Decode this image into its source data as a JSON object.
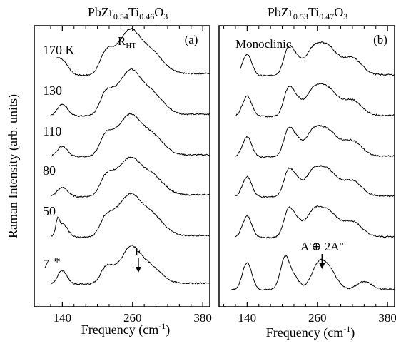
{
  "chart_data": [
    {
      "type": "line",
      "panel_label": "(a)",
      "composition": {
        "base": "PbZr",
        "zr": "0.54",
        "ti_sym": "Ti",
        "ti": "0.46",
        "o": "O",
        "o_sub": "3"
      },
      "phase": {
        "main": "R",
        "sub": "HT"
      },
      "xlabel": {
        "text": "Frequency (cm",
        "sup": "-1",
        "close": ")"
      },
      "ylabel": "Raman Intensity (arb. units)",
      "xlim": [
        92,
        392
      ],
      "xticks": [
        140,
        260,
        380
      ],
      "y_axis_ticks": false,
      "annotation": {
        "text": "E",
        "x": 270
      },
      "asterisk": {
        "text": "*",
        "x": 133
      },
      "series": [
        {
          "name": "170 K",
          "offset": 5,
          "peaks": [
            [
              130,
              0.3,
              5
            ],
            [
              140,
              0.55,
              10
            ],
            [
              213,
              0.65,
              10
            ],
            [
              228,
              0.45,
              12
            ],
            [
              244,
              0.52,
              13
            ],
            [
              258,
              0.55,
              12
            ],
            [
              272,
              1.0,
              22
            ],
            [
              302,
              0.35,
              18
            ]
          ],
          "base": [
            0.3,
            0.1
          ]
        },
        {
          "name": "130",
          "offset": 4,
          "peaks": [
            [
              140,
              0.45,
              9
            ],
            [
              213,
              0.65,
              10
            ],
            [
              228,
              0.45,
              12
            ],
            [
              244,
              0.52,
              13
            ],
            [
              258,
              0.55,
              12
            ],
            [
              272,
              1.0,
              22
            ],
            [
              302,
              0.35,
              18
            ]
          ],
          "base": [
            0.3,
            0.1
          ]
        },
        {
          "name": "110",
          "offset": 3,
          "peaks": [
            [
              140,
              0.4,
              9
            ],
            [
              213,
              0.6,
              10
            ],
            [
              228,
              0.45,
              12
            ],
            [
              244,
              0.5,
              13
            ],
            [
              258,
              0.5,
              12
            ],
            [
              272,
              0.9,
              22
            ],
            [
              302,
              0.35,
              18
            ]
          ],
          "base": [
            0.3,
            0.1
          ]
        },
        {
          "name": "80",
          "offset": 2,
          "peaks": [
            [
              140,
              0.35,
              9
            ],
            [
              213,
              0.55,
              10
            ],
            [
              228,
              0.45,
              12
            ],
            [
              244,
              0.45,
              13
            ],
            [
              258,
              0.45,
              12
            ],
            [
              272,
              0.85,
              22
            ],
            [
              302,
              0.35,
              18
            ]
          ],
          "base": [
            0.3,
            0.1
          ]
        },
        {
          "name": "50",
          "offset": 1,
          "peaks": [
            [
              132,
              0.4,
              3
            ],
            [
              140,
              0.5,
              9
            ],
            [
              213,
              0.55,
              10
            ],
            [
              228,
              0.45,
              12
            ],
            [
              244,
              0.5,
              13
            ],
            [
              258,
              0.5,
              12
            ],
            [
              272,
              0.95,
              22
            ],
            [
              302,
              0.35,
              18
            ]
          ],
          "base": [
            0.3,
            0.1
          ]
        },
        {
          "name": "7",
          "offset": 0,
          "peaks": [
            [
              140,
              0.5,
              8
            ],
            [
              213,
              0.5,
              9
            ],
            [
              228,
              0.4,
              10
            ],
            [
              246,
              0.45,
              11
            ],
            [
              258,
              0.45,
              11
            ],
            [
              270,
              0.85,
              18
            ],
            [
              300,
              0.35,
              16
            ]
          ],
          "base": [
            0.3,
            0.05
          ]
        }
      ]
    },
    {
      "type": "line",
      "panel_label": "(b)",
      "composition": {
        "base": "PbZr",
        "zr": "0.53",
        "ti_sym": "Ti",
        "ti": "0.47",
        "o": "O",
        "o_sub": "3"
      },
      "phase": {
        "main": "Monoclinic",
        "sub": ""
      },
      "xlabel": {
        "text": "Frequency (cm",
        "sup": "-1",
        "close": ")"
      },
      "xlim": [
        92,
        392
      ],
      "xticks": [
        140,
        260,
        380
      ],
      "y_axis_ticks": false,
      "annotation": {
        "text": "A'⊕ 2A''",
        "x": 268
      },
      "series": [
        {
          "offset": 5,
          "peaks": [
            [
              140,
              0.8,
              8
            ],
            [
              210,
              0.9,
              8
            ],
            [
              224,
              0.55,
              9
            ],
            [
              250,
              0.6,
              12
            ],
            [
              275,
              1.1,
              18
            ],
            [
              320,
              0.6,
              16
            ]
          ],
          "base": [
            0.3,
            0.05
          ]
        },
        {
          "offset": 4,
          "peaks": [
            [
              140,
              0.75,
              8
            ],
            [
              210,
              0.9,
              8
            ],
            [
              224,
              0.55,
              9
            ],
            [
              250,
              0.6,
              12
            ],
            [
              275,
              1.05,
              18
            ],
            [
              320,
              0.55,
              16
            ]
          ],
          "base": [
            0.3,
            0.05
          ]
        },
        {
          "offset": 3,
          "peaks": [
            [
              140,
              0.75,
              8
            ],
            [
              210,
              0.9,
              8
            ],
            [
              224,
              0.55,
              9
            ],
            [
              250,
              0.6,
              12
            ],
            [
              275,
              1.0,
              18
            ],
            [
              320,
              0.55,
              16
            ]
          ],
          "base": [
            0.3,
            0.05
          ]
        },
        {
          "offset": 2,
          "peaks": [
            [
              140,
              0.75,
              8
            ],
            [
              210,
              0.85,
              8
            ],
            [
              224,
              0.55,
              9
            ],
            [
              250,
              0.6,
              12
            ],
            [
              275,
              1.0,
              18
            ],
            [
              320,
              0.55,
              16
            ]
          ],
          "base": [
            0.3,
            0.05
          ]
        },
        {
          "offset": 1,
          "peaks": [
            [
              140,
              0.8,
              8
            ],
            [
              210,
              0.9,
              8
            ],
            [
              224,
              0.55,
              9
            ],
            [
              250,
              0.6,
              12
            ],
            [
              275,
              1.0,
              18
            ],
            [
              320,
              0.55,
              16
            ]
          ],
          "base": [
            0.3,
            0.05
          ]
        },
        {
          "offset": 0,
          "peaks": [
            [
              140,
              1.0,
              8
            ],
            [
              205,
              1.2,
              8
            ],
            [
              222,
              0.4,
              8
            ],
            [
              262,
              0.9,
              12
            ],
            [
              282,
              0.6,
              12
            ],
            [
              340,
              0.3,
              12
            ]
          ],
          "base": [
            0.1,
            0.02
          ]
        }
      ]
    }
  ]
}
